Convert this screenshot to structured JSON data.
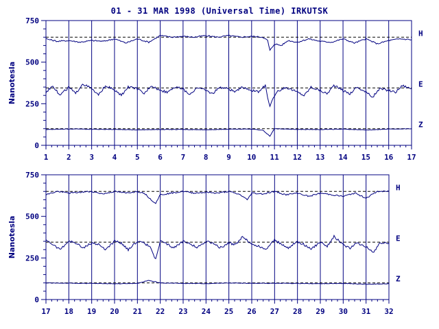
{
  "title": "01 - 31 MAR 1998 (Universal Time) IRKUTSK",
  "chart_data": [
    {
      "type": "line",
      "panel": "top",
      "ylabel": "Nanotesla",
      "xlim": [
        1,
        17
      ],
      "ylim": [
        0,
        750
      ],
      "x_ticks": [
        "1",
        "2",
        "3",
        "4",
        "5",
        "6",
        "7",
        "8",
        "9",
        "10",
        "11",
        "12",
        "13",
        "14",
        "15",
        "16",
        "17"
      ],
      "y_ticks": [
        "0",
        "250",
        "500",
        "750"
      ],
      "grid": "vertical at each day",
      "series": [
        {
          "name": "H",
          "baseline": 650,
          "x": [
            1,
            1.5,
            2,
            2.5,
            3,
            3.5,
            4,
            4.5,
            5,
            5.5,
            6,
            6.5,
            7,
            7.5,
            8,
            8.5,
            9,
            9.5,
            10,
            10.5,
            10.7,
            10.8,
            11,
            11.3,
            11.6,
            12,
            12.5,
            13,
            13.5,
            14,
            14.5,
            15,
            15.5,
            16,
            16.5,
            17
          ],
          "values": [
            640,
            625,
            630,
            620,
            630,
            625,
            640,
            615,
            640,
            620,
            660,
            650,
            655,
            650,
            660,
            650,
            660,
            650,
            655,
            650,
            630,
            570,
            610,
            600,
            630,
            620,
            640,
            625,
            620,
            640,
            615,
            640,
            610,
            630,
            640,
            635
          ]
        },
        {
          "name": "E",
          "baseline": 345,
          "x": [
            1,
            1.3,
            1.6,
            2,
            2.3,
            2.6,
            3,
            3.3,
            3.6,
            4,
            4.3,
            4.6,
            5,
            5.3,
            5.6,
            6,
            6.3,
            6.6,
            7,
            7.3,
            7.6,
            8,
            8.3,
            8.6,
            9,
            9.3,
            9.6,
            10,
            10.3,
            10.6,
            10.8,
            11,
            11.2,
            11.5,
            12,
            12.3,
            12.6,
            13,
            13.3,
            13.6,
            14,
            14.3,
            14.6,
            15,
            15.3,
            15.6,
            16,
            16.3,
            16.6,
            17
          ],
          "values": [
            320,
            360,
            300,
            350,
            310,
            370,
            340,
            300,
            360,
            330,
            300,
            350,
            340,
            310,
            360,
            330,
            320,
            350,
            340,
            300,
            350,
            330,
            310,
            350,
            340,
            320,
            350,
            330,
            320,
            360,
            230,
            300,
            330,
            350,
            320,
            300,
            350,
            330,
            310,
            360,
            330,
            310,
            350,
            320,
            290,
            340,
            330,
            320,
            360,
            340
          ]
        },
        {
          "name": "Z",
          "baseline": 100,
          "x": [
            1,
            2,
            3,
            4,
            5,
            6,
            7,
            8,
            9,
            10,
            10.5,
            10.8,
            11,
            12,
            13,
            14,
            15,
            16,
            17
          ],
          "values": [
            95,
            98,
            97,
            95,
            93,
            95,
            95,
            93,
            97,
            98,
            90,
            55,
            100,
            95,
            95,
            97,
            92,
            98,
            100
          ]
        }
      ]
    },
    {
      "type": "line",
      "panel": "bottom",
      "ylabel": "Nanotesla",
      "xlim": [
        17,
        32
      ],
      "ylim": [
        0,
        750
      ],
      "x_ticks": [
        "17",
        "18",
        "19",
        "20",
        "21",
        "22",
        "23",
        "24",
        "25",
        "26",
        "27",
        "28",
        "29",
        "30",
        "31",
        "32"
      ],
      "y_ticks": [
        "0",
        "250",
        "500",
        "750"
      ],
      "grid": "vertical at each day",
      "series": [
        {
          "name": "H",
          "baseline": 650,
          "x": [
            17,
            17.5,
            18,
            18.5,
            19,
            19.5,
            20,
            20.5,
            21,
            21.3,
            21.6,
            21.8,
            22,
            22.5,
            23,
            23.5,
            24,
            24.5,
            25,
            25.5,
            25.8,
            26,
            26.5,
            27,
            27.5,
            28,
            28.5,
            29,
            29.5,
            30,
            30.5,
            31,
            31.5,
            32
          ],
          "values": [
            630,
            650,
            640,
            645,
            650,
            635,
            650,
            640,
            650,
            640,
            600,
            580,
            630,
            640,
            650,
            640,
            645,
            640,
            650,
            630,
            600,
            640,
            635,
            650,
            630,
            640,
            620,
            640,
            630,
            620,
            640,
            610,
            650,
            650
          ]
        },
        {
          "name": "E",
          "baseline": 345,
          "x": [
            17,
            17.3,
            17.6,
            18,
            18.3,
            18.6,
            19,
            19.3,
            19.6,
            20,
            20.3,
            20.6,
            21,
            21.3,
            21.6,
            21.8,
            22,
            22.3,
            22.6,
            23,
            23.3,
            23.6,
            24,
            24.3,
            24.6,
            25,
            25.3,
            25.6,
            26,
            26.3,
            26.6,
            27,
            27.3,
            27.6,
            28,
            28.3,
            28.6,
            29,
            29.3,
            29.6,
            30,
            30.3,
            30.6,
            31,
            31.3,
            31.6,
            32
          ],
          "values": [
            360,
            330,
            300,
            350,
            340,
            310,
            340,
            330,
            300,
            350,
            340,
            300,
            350,
            340,
            310,
            240,
            350,
            330,
            310,
            350,
            340,
            310,
            350,
            340,
            310,
            340,
            330,
            380,
            330,
            320,
            300,
            360,
            330,
            310,
            350,
            330,
            300,
            350,
            320,
            380,
            330,
            310,
            340,
            320,
            280,
            340,
            340
          ]
        },
        {
          "name": "Z",
          "baseline": 100,
          "x": [
            17,
            18,
            19,
            20,
            21,
            21.5,
            22,
            23,
            24,
            25,
            26,
            27,
            28,
            29,
            30,
            31,
            32
          ],
          "values": [
            100,
            98,
            97,
            95,
            97,
            115,
            100,
            97,
            96,
            100,
            97,
            98,
            97,
            95,
            97,
            92,
            95
          ]
        }
      ]
    }
  ]
}
